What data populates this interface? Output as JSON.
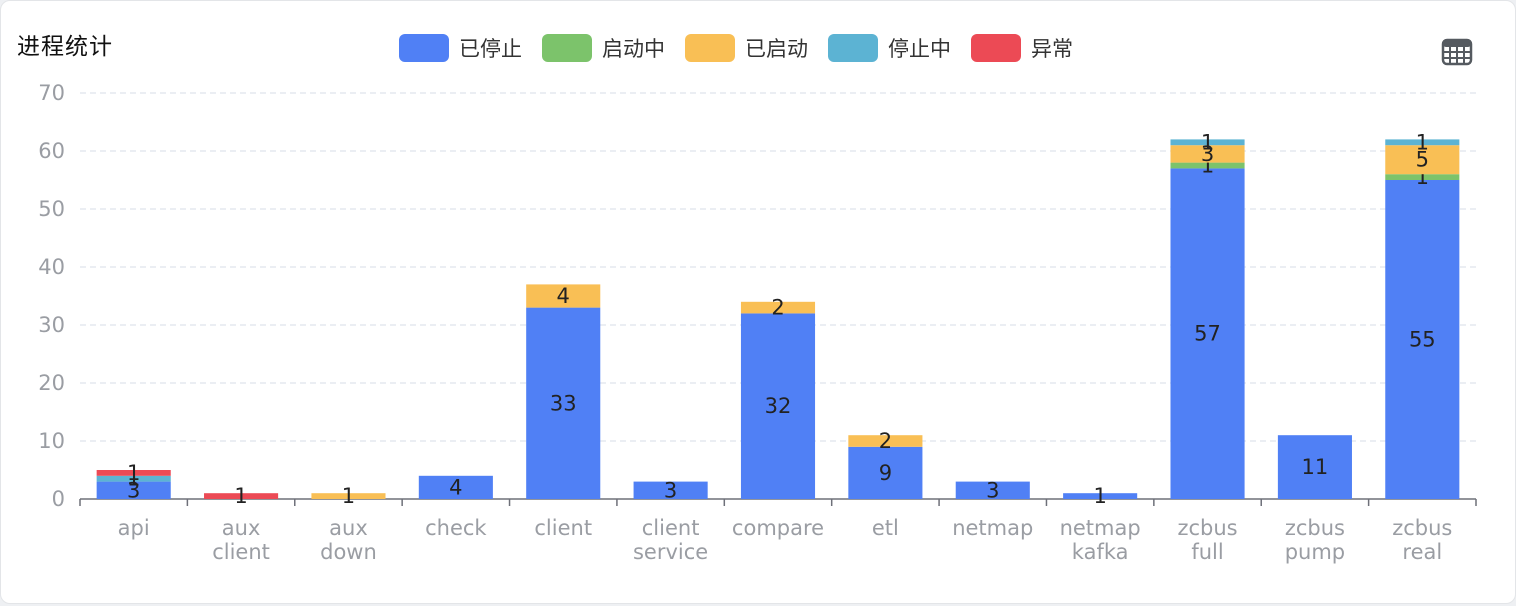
{
  "panel": {
    "title": "进程统计"
  },
  "toolbox": {
    "data_view_icon": "table-grid-icon"
  },
  "chart_data": {
    "type": "bar",
    "stacked": true,
    "title": "进程统计",
    "categories": [
      [
        "api"
      ],
      [
        "aux",
        "client"
      ],
      [
        "aux",
        "down"
      ],
      [
        "check"
      ],
      [
        "client"
      ],
      [
        "client",
        "service"
      ],
      [
        "compare"
      ],
      [
        "etl"
      ],
      [
        "netmap"
      ],
      [
        "netmap",
        "kafka"
      ],
      [
        "zcbus",
        "full"
      ],
      [
        "zcbus",
        "pump"
      ],
      [
        "zcbus",
        "real"
      ]
    ],
    "series": [
      {
        "name": "已停止",
        "color": "#5080f5",
        "values": [
          3,
          0,
          0,
          4,
          33,
          3,
          32,
          9,
          3,
          1,
          57,
          11,
          55
        ]
      },
      {
        "name": "启动中",
        "color": "#7cc36b",
        "values": [
          0,
          0,
          0,
          0,
          0,
          0,
          0,
          0,
          0,
          0,
          1,
          0,
          1
        ]
      },
      {
        "name": "已启动",
        "color": "#f9bf55",
        "values": [
          0,
          0,
          1,
          0,
          4,
          0,
          2,
          2,
          0,
          0,
          3,
          0,
          5
        ]
      },
      {
        "name": "停止中",
        "color": "#5cb3d3",
        "values": [
          1,
          0,
          0,
          0,
          0,
          0,
          0,
          0,
          0,
          0,
          1,
          0,
          1
        ]
      },
      {
        "name": "异常",
        "color": "#ec4a55",
        "values": [
          1,
          1,
          0,
          0,
          0,
          0,
          0,
          0,
          0,
          0,
          0,
          0,
          0
        ]
      }
    ],
    "ylim": [
      0,
      70
    ],
    "yticks": [
      0,
      10,
      20,
      30,
      40,
      50,
      60,
      70
    ],
    "grid": true,
    "legend_position": "top-center"
  }
}
